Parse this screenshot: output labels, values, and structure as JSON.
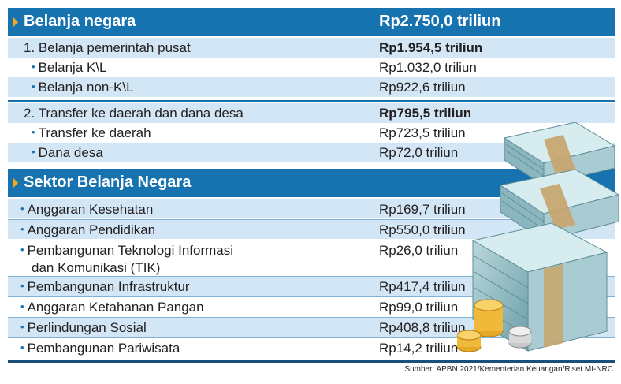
{
  "header1": {
    "title": "Belanja negara",
    "amount": "Rp2.750,0 triliun"
  },
  "section1": [
    {
      "label": "1. Belanja pemerintah pusat",
      "value": "Rp1.954,5 triliun",
      "bold": true,
      "bullet": false
    },
    {
      "label": "Belanja K\\L",
      "value": "Rp1.032,0 triliun",
      "bold": false,
      "bullet": true
    },
    {
      "label": "Belanja non-K\\L",
      "value": "Rp922,6 triliun",
      "bold": false,
      "bullet": true
    },
    {
      "label": "2. Transfer ke daerah dan dana desa",
      "value": "Rp795,5 triliun",
      "bold": true,
      "bullet": false
    },
    {
      "label": "Transfer ke daerah",
      "value": "Rp723,5 triliun",
      "bold": false,
      "bullet": true
    },
    {
      "label": "Dana desa",
      "value": "Rp72,0 triliun",
      "bold": false,
      "bullet": true
    }
  ],
  "header2": {
    "title": "Sektor Belanja Negara"
  },
  "section2": [
    {
      "label": "Anggaran Kesehatan",
      "value": "Rp169,7 triliun"
    },
    {
      "label": "Anggaran Pendidikan",
      "value": "Rp550,0 triliun"
    },
    {
      "label": "Pembangunan Teknologi Informasi",
      "label2": "dan Komunikasi (TIK)",
      "value": "Rp26,0 triliun"
    },
    {
      "label": "Pembangunan Infrastruktur",
      "value": "Rp417,4 triliun"
    },
    {
      "label": "Anggaran Ketahanan Pangan",
      "value": "Rp99,0 triliun"
    },
    {
      "label": "Perlindungan Sosial",
      "value": "Rp408,8 triliun"
    },
    {
      "label": "Pembangunan Pariwisata",
      "value": "Rp14,2 triliun"
    }
  ],
  "source": "Sumber: APBN 2021/Kementerian Keuangan/Riset MI-NRC",
  "colors": {
    "header": "#1673b0",
    "accent": "#f7a81b",
    "shade": "#d3e6f5"
  },
  "illustration": "money-stack-icon"
}
